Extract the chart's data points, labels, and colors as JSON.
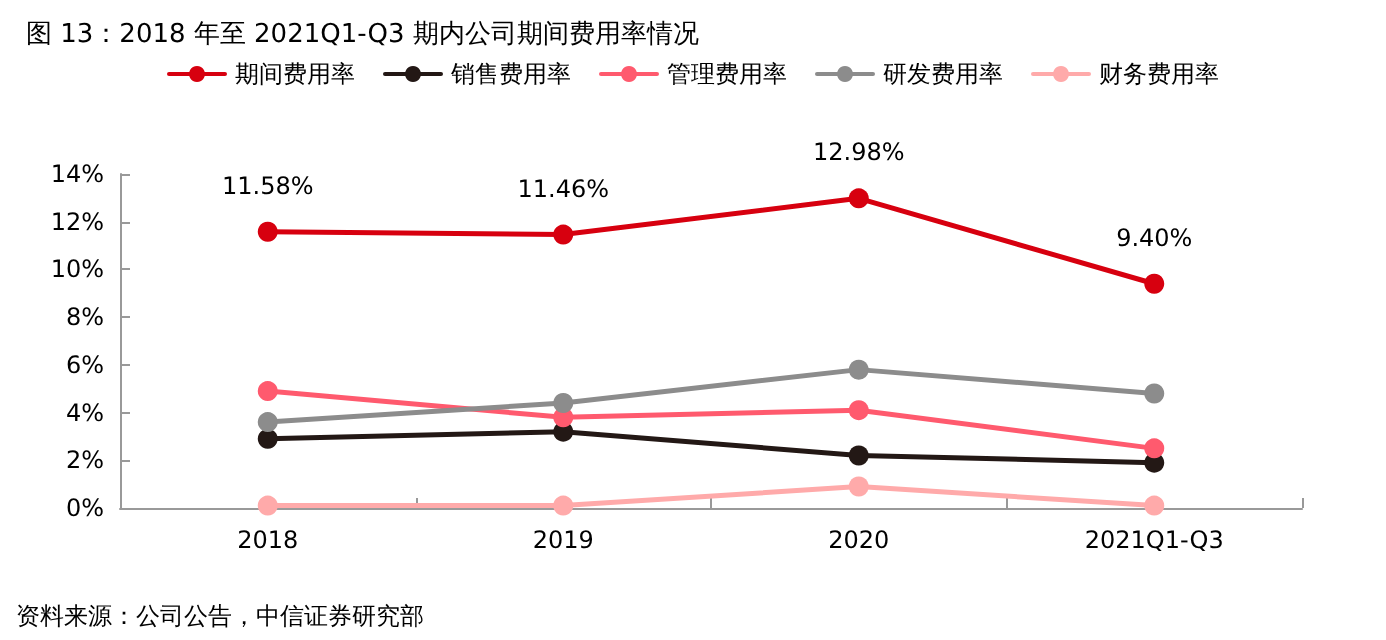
{
  "chart_data": {
    "type": "line",
    "title": "图 13：2018 年至 2021Q1-Q3 期内公司期间费用率情况",
    "categories": [
      "2018",
      "2019",
      "2020",
      "2021Q1-Q3"
    ],
    "series": [
      {
        "name": "期间费用率",
        "color": "#d7000f",
        "values": [
          11.58,
          11.46,
          12.98,
          9.4
        ],
        "value_labels": [
          "11.58%",
          "11.46%",
          "12.98%",
          "9.40%"
        ]
      },
      {
        "name": "销售费用率",
        "color": "#231815",
        "values": [
          2.9,
          3.2,
          2.2,
          1.9
        ]
      },
      {
        "name": "管理费用率",
        "color": "#ff5a6e",
        "values": [
          4.9,
          3.8,
          4.1,
          2.5
        ]
      },
      {
        "name": "研发费用率",
        "color": "#8c8c8c",
        "values": [
          3.6,
          4.4,
          5.8,
          4.8
        ]
      },
      {
        "name": "财务费用率",
        "color": "#ffaaaa",
        "values": [
          0.1,
          0.1,
          0.9,
          0.1
        ]
      }
    ],
    "ylim": [
      0,
      14
    ],
    "yticks": [
      {
        "value": 0,
        "label": "0%"
      },
      {
        "value": 2,
        "label": "2%"
      },
      {
        "value": 4,
        "label": "4%"
      },
      {
        "value": 6,
        "label": "6%"
      },
      {
        "value": 8,
        "label": "8%"
      },
      {
        "value": 10,
        "label": "10%"
      },
      {
        "value": 12,
        "label": "12%"
      },
      {
        "value": 14,
        "label": "14%"
      }
    ],
    "legend": "top",
    "marker": "circle",
    "line_style": "solid",
    "grid": false,
    "annotations": [
      "资料来源：公司公告，中信证券研究部"
    ]
  }
}
